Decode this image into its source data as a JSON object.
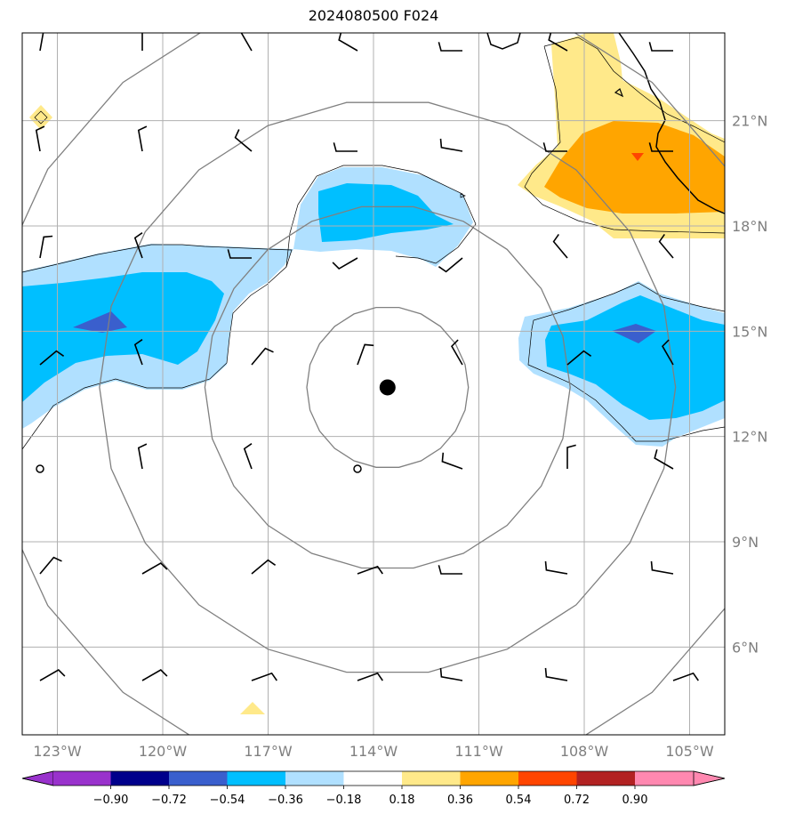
{
  "title": "2024080500 F024",
  "map": {
    "lon_range": [
      -124,
      -104
    ],
    "lat_range": [
      3.5,
      23.5
    ],
    "center_marker": {
      "lon": -113.6,
      "lat": 13.4
    },
    "lat_gridlines": [
      6,
      9,
      12,
      15,
      18,
      21
    ],
    "lon_gridlines": [
      -123,
      -120,
      -117,
      -114,
      -111,
      -108,
      -105
    ],
    "lat_labels": [
      "6°N",
      "9°N",
      "12°N",
      "15°N",
      "18°N",
      "21°N"
    ],
    "lon_labels": [
      "123°W",
      "120°W",
      "117°W",
      "114°W",
      "111°W",
      "108°W",
      "105°W"
    ],
    "range_ring_radii_deg": [
      2.3,
      5.2,
      8.2,
      11.5
    ],
    "colors": {
      "grid": "#b0b0b0",
      "rings": "#808080",
      "axis_labels": "#7f7f7f",
      "wind_barbs": "#000000",
      "coastline": "#000000"
    }
  },
  "colorbar": {
    "levels": [
      "−0.90",
      "−0.72",
      "−0.54",
      "−0.36",
      "−0.18",
      "0.18",
      "0.36",
      "0.54",
      "0.72",
      "0.90"
    ],
    "colors": [
      "#9932cc",
      "#00008b",
      "#3a5fcd",
      "#00bfff",
      "#b0e0ff",
      "#ffffff",
      "#ffe98a",
      "#ffa500",
      "#ff4500",
      "#b22222",
      "#ff88b0"
    ]
  }
}
